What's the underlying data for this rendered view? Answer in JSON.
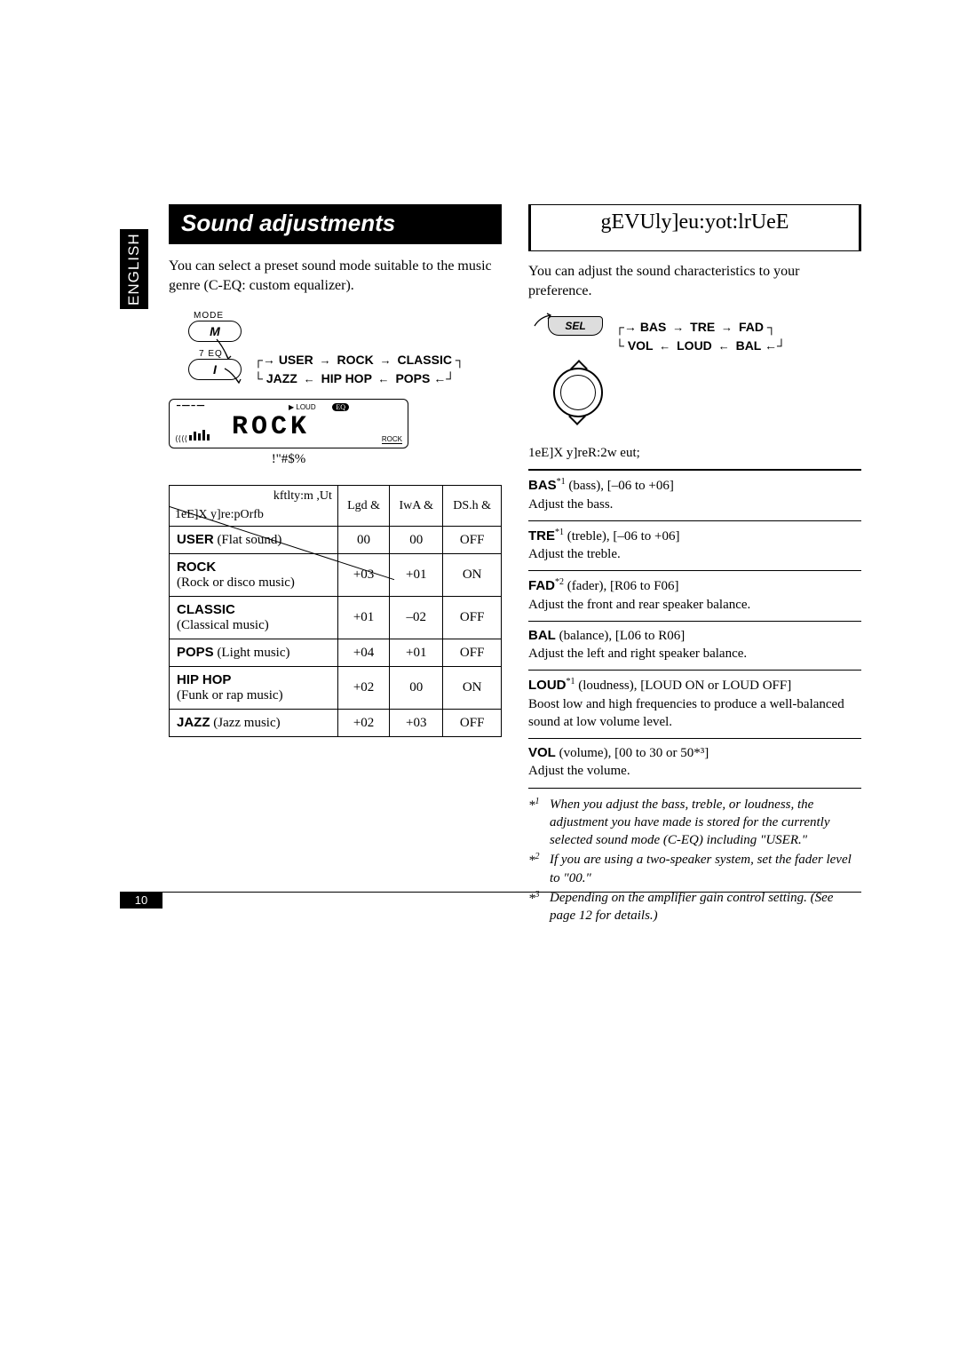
{
  "lang_tab": "ENGLISH",
  "page_number": "10",
  "left": {
    "title": "Sound adjustments",
    "intro": "You can select a preset sound mode suitable to the music genre (C-EQ: custom equalizer).",
    "mode_label": "MODE",
    "mode_btn": "M",
    "eq_label": "7 EQ",
    "eq_btn": "I",
    "flow_top": [
      "USER",
      "ROCK",
      "CLASSIC"
    ],
    "flow_bot": [
      "JAZZ",
      "HIP HOP",
      "POPS"
    ],
    "lcd_text": "ROCK",
    "lcd_loud": "LOUD",
    "lcd_eq": "EQ",
    "lcd_rock": "ROCK",
    "caption": "!\"#$%",
    "table": {
      "diag_top": "kftlty:m ,Ut",
      "diag_bot": "1eE]X y]re:pOrfb",
      "headers": [
        "Lgd\n&",
        "IwA\n&",
        "DS.h\n&"
      ],
      "rows": [
        {
          "name": "USER",
          "sub": " (Flat sound)",
          "bas": "00",
          "tre": "00",
          "loud": "OFF"
        },
        {
          "name": "ROCK",
          "sub": "\n(Rock or disco music)",
          "bas": "+03",
          "tre": "+01",
          "loud": "ON"
        },
        {
          "name": "CLASSIC",
          "sub": "\n(Classical music)",
          "bas": "+01",
          "tre": "–02",
          "loud": "OFF"
        },
        {
          "name": "POPS",
          "sub": " (Light music)",
          "bas": "+04",
          "tre": "+01",
          "loud": "OFF"
        },
        {
          "name": "HIP HOP",
          "sub": "\n(Funk or rap music)",
          "bas": "+02",
          "tre": "00",
          "loud": "ON"
        },
        {
          "name": "JAZZ",
          "sub": " (Jazz music)",
          "bas": "+02",
          "tre": "+03",
          "loud": "OFF"
        }
      ]
    }
  },
  "right": {
    "title": "gEVUly]eu:yot:lrUeE",
    "intro": "You can adjust the sound characteristics to your preference.",
    "sel_btn": "SEL",
    "flow_top": [
      "BAS",
      "TRE",
      "FAD"
    ],
    "flow_bot": [
      "VOL",
      "LOUD",
      "BAL"
    ],
    "spec_header": "1eE]X y]reR:2w eut;",
    "specs": [
      {
        "b": "BAS",
        "sup": "*1",
        "rest1": " (bass), [–06 to +06]",
        "rest2": "Adjust the bass."
      },
      {
        "b": "TRE",
        "sup": "*1",
        "rest1": " (treble), [–06 to +06]",
        "rest2": "Adjust the treble."
      },
      {
        "b": "FAD",
        "sup": "*2",
        "rest1": " (fader), [R06 to F06]",
        "rest2": "Adjust the front and rear speaker balance."
      },
      {
        "b": "BAL",
        "sup": "",
        "rest1": " (balance), [L06 to R06]",
        "rest2": "Adjust the left and right speaker balance."
      },
      {
        "b": "LOUD",
        "sup": "*1",
        "rest1": " (loudness), [LOUD ON or LOUD OFF]",
        "rest2": "Boost low and high frequencies to produce a well-balanced sound at low volume level."
      },
      {
        "b": "VOL",
        "sup": "",
        "rest1": " (volume), [00 to 30 or 50*³]",
        "rest2": "Adjust the volume."
      }
    ],
    "footnotes": [
      {
        "mark": "*1",
        "text": "When you adjust the bass, treble, or loudness, the adjustment you have made is stored for the currently selected sound mode (C-EQ) including \"USER.\""
      },
      {
        "mark": "*2",
        "text": "If you are using a two-speaker system, set the fader level to \"00.\""
      },
      {
        "mark": "*3",
        "text": "Depending on the amplifier gain control setting. (See page 12 for details.)"
      }
    ]
  }
}
